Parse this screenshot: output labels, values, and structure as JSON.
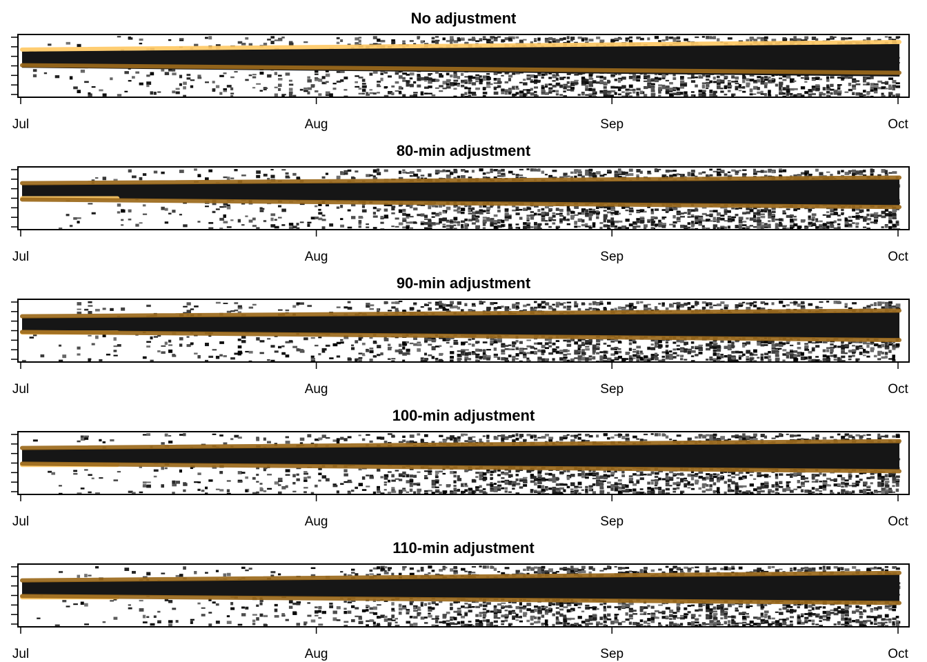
{
  "chart_data": [
    {
      "type": "heatmap",
      "title": "No adjustment",
      "x_ticks": [
        "Jul",
        "Aug",
        "Sep",
        "Oct"
      ],
      "xlim": [
        "Jul 1",
        "Oct 1"
      ],
      "y_ticks": 7,
      "series": [
        {
          "color": "#FFC966",
          "start": [
            0,
            0.76
          ],
          "end": [
            92,
            0.88
          ]
        },
        {
          "color": "#9C6A1C",
          "start": [
            0,
            0.51
          ],
          "end": [
            92,
            0.39
          ]
        }
      ]
    },
    {
      "type": "heatmap",
      "title": "80-min adjustment",
      "x_ticks": [
        "Jul",
        "Aug",
        "Sep",
        "Oct"
      ],
      "xlim": [
        "Jul 1",
        "Oct 1"
      ],
      "y_ticks": 7,
      "series": [
        {
          "color": "#FFC966",
          "start": [
            0,
            0.5
          ],
          "end": [
            10,
            0.5
          ]
        },
        {
          "color": "#9C6A1C",
          "start": [
            0,
            0.74
          ],
          "end": [
            92,
            0.83
          ]
        },
        {
          "color": "#9C6A1C",
          "start": [
            0,
            0.48
          ],
          "end": [
            92,
            0.36
          ]
        }
      ]
    },
    {
      "type": "heatmap",
      "title": "90-min adjustment",
      "x_ticks": [
        "Jul",
        "Aug",
        "Sep",
        "Oct"
      ],
      "xlim": [
        "Jul 1",
        "Oct 1"
      ],
      "y_ticks": 7,
      "series": [
        {
          "color": "#FFC966",
          "start": [
            0,
            0.47
          ],
          "end": [
            10,
            0.47
          ]
        },
        {
          "color": "#9C6A1C",
          "start": [
            0,
            0.73
          ],
          "end": [
            92,
            0.82
          ]
        },
        {
          "color": "#9C6A1C",
          "start": [
            0,
            0.48
          ],
          "end": [
            92,
            0.35
          ]
        }
      ]
    },
    {
      "type": "heatmap",
      "title": "100-min adjustment",
      "x_ticks": [
        "Jul",
        "Aug",
        "Sep",
        "Oct"
      ],
      "xlim": [
        "Jul 1",
        "Oct 1"
      ],
      "y_ticks": 7,
      "series": [
        {
          "color": "#FFC966",
          "start": [
            0,
            0.47
          ],
          "end": [
            10,
            0.47
          ]
        },
        {
          "color": "#9C6A1C",
          "start": [
            0,
            0.74
          ],
          "end": [
            92,
            0.85
          ]
        },
        {
          "color": "#9C6A1C",
          "start": [
            0,
            0.49
          ],
          "end": [
            92,
            0.37
          ]
        }
      ]
    },
    {
      "type": "heatmap",
      "title": "110-min adjustment",
      "x_ticks": [
        "Jul",
        "Aug",
        "Sep",
        "Oct"
      ],
      "xlim": [
        "Jul 1",
        "Oct 1"
      ],
      "y_ticks": 7,
      "series": [
        {
          "color": "#FFC966",
          "start": [
            0,
            0.47
          ],
          "end": [
            10,
            0.47
          ]
        },
        {
          "color": "#9C6A1C",
          "start": [
            0,
            0.74
          ],
          "end": [
            92,
            0.86
          ]
        },
        {
          "color": "#9C6A1C",
          "start": [
            0,
            0.49
          ],
          "end": [
            92,
            0.38
          ]
        }
      ]
    }
  ]
}
